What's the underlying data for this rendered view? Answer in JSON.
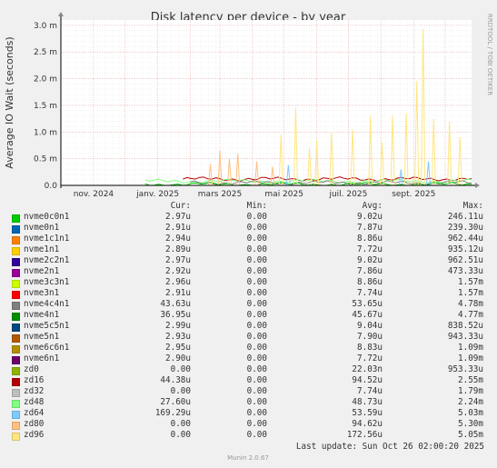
{
  "chart_data": {
    "type": "line",
    "title": "Disk latency per device - by year",
    "ylabel": "Average IO Wait (seconds)",
    "ylim": [
      0,
      3.1
    ],
    "yticks": [
      {
        "value": 0,
        "label": "0.0"
      },
      {
        "value": 0.5,
        "label": "0.5 m"
      },
      {
        "value": 1.0,
        "label": "1.0 m"
      },
      {
        "value": 1.5,
        "label": "1.5 m"
      },
      {
        "value": 2.0,
        "label": "2.0 m"
      },
      {
        "value": 2.5,
        "label": "2.5 m"
      },
      {
        "value": 3.0,
        "label": "3.0 m"
      }
    ],
    "xticks": [
      {
        "date": "2024-11-01",
        "label": "nov. 2024"
      },
      {
        "date": "2025-01-01",
        "label": "janv. 2025"
      },
      {
        "date": "2025-03-01",
        "label": "mars 2025"
      },
      {
        "date": "2025-05-01",
        "label": "mai 2025"
      },
      {
        "date": "2025-07-01",
        "label": "juil. 2025"
      },
      {
        "date": "2025-09-01",
        "label": "sept. 2025"
      }
    ],
    "xrange": [
      "2024-10-01",
      "2025-10-26"
    ],
    "grid": true,
    "legend_placement": "bottom",
    "legend_headers": [
      "Cur:",
      "Min:",
      "Avg:",
      "Max:"
    ],
    "series": [
      {
        "name": "nvme0c0n1",
        "color": "#00cc00",
        "cur": "2.97u",
        "min": "0.00",
        "avg": "9.02u",
        "max": "246.11u"
      },
      {
        "name": "nvme0n1",
        "color": "#0066b3",
        "cur": "2.91u",
        "min": "0.00",
        "avg": "7.87u",
        "max": "239.30u"
      },
      {
        "name": "nvme1c1n1",
        "color": "#ff8000",
        "cur": "2.94u",
        "min": "0.00",
        "avg": "8.86u",
        "max": "962.44u"
      },
      {
        "name": "nvme1n1",
        "color": "#ffcc00",
        "cur": "2.89u",
        "min": "0.00",
        "avg": "7.72u",
        "max": "935.12u"
      },
      {
        "name": "nvme2c2n1",
        "color": "#330099",
        "cur": "2.97u",
        "min": "0.00",
        "avg": "9.02u",
        "max": "962.51u"
      },
      {
        "name": "nvme2n1",
        "color": "#990099",
        "cur": "2.92u",
        "min": "0.00",
        "avg": "7.86u",
        "max": "473.33u"
      },
      {
        "name": "nvme3c3n1",
        "color": "#ccff00",
        "cur": "2.96u",
        "min": "0.00",
        "avg": "8.86u",
        "max": "1.57m"
      },
      {
        "name": "nvme3n1",
        "color": "#ff0000",
        "cur": "2.91u",
        "min": "0.00",
        "avg": "7.74u",
        "max": "1.57m"
      },
      {
        "name": "nvme4c4n1",
        "color": "#808080",
        "cur": "43.63u",
        "min": "0.00",
        "avg": "53.65u",
        "max": "4.78m"
      },
      {
        "name": "nvme4n1",
        "color": "#008f00",
        "cur": "36.95u",
        "min": "0.00",
        "avg": "45.67u",
        "max": "4.77m"
      },
      {
        "name": "nvme5c5n1",
        "color": "#00487d",
        "cur": "2.99u",
        "min": "0.00",
        "avg": "9.04u",
        "max": "838.52u"
      },
      {
        "name": "nvme5n1",
        "color": "#b35a00",
        "cur": "2.93u",
        "min": "0.00",
        "avg": "7.90u",
        "max": "943.33u"
      },
      {
        "name": "nvme6c6n1",
        "color": "#b38f00",
        "cur": "2.95u",
        "min": "0.00",
        "avg": "8.83u",
        "max": "1.09m"
      },
      {
        "name": "nvme6n1",
        "color": "#6b006b",
        "cur": "2.90u",
        "min": "0.00",
        "avg": "7.72u",
        "max": "1.09m"
      },
      {
        "name": "zd0",
        "color": "#8fb300",
        "cur": "0.00",
        "min": "0.00",
        "avg": "22.03n",
        "max": "953.33u"
      },
      {
        "name": "zd16",
        "color": "#b30000",
        "cur": "44.38u",
        "min": "0.00",
        "avg": "94.52u",
        "max": "2.55m"
      },
      {
        "name": "zd32",
        "color": "#bebebe",
        "cur": "0.00",
        "min": "0.00",
        "avg": "7.74u",
        "max": "1.79m"
      },
      {
        "name": "zd48",
        "color": "#80ff80",
        "cur": "27.60u",
        "min": "0.00",
        "avg": "48.73u",
        "max": "2.24m"
      },
      {
        "name": "zd64",
        "color": "#80c9ff",
        "cur": "169.29u",
        "min": "0.00",
        "avg": "53.59u",
        "max": "5.03m"
      },
      {
        "name": "zd80",
        "color": "#ffc080",
        "cur": "0.00",
        "min": "0.00",
        "avg": "94.62u",
        "max": "5.30m"
      },
      {
        "name": "zd96",
        "color": "#ffe680",
        "cur": "0.00",
        "min": "0.00",
        "avg": "172.56u",
        "max": "5.05m"
      }
    ],
    "spikes": [
      {
        "date": "2025-09-10",
        "series": "zd96",
        "value": 2.93
      },
      {
        "date": "2025-09-04",
        "series": "zd96",
        "value": 1.95
      },
      {
        "date": "2025-08-25",
        "series": "zd96",
        "value": 1.35
      },
      {
        "date": "2025-08-12",
        "series": "zd96",
        "value": 1.3
      },
      {
        "date": "2025-07-22",
        "series": "zd96",
        "value": 1.3
      },
      {
        "date": "2025-09-20",
        "series": "zd96",
        "value": 1.25
      },
      {
        "date": "2025-10-05",
        "series": "zd96",
        "value": 1.2
      },
      {
        "date": "2025-07-05",
        "series": "zd96",
        "value": 1.05
      },
      {
        "date": "2025-06-15",
        "series": "zd96",
        "value": 1.0
      },
      {
        "date": "2025-05-12",
        "series": "zd96",
        "value": 1.45
      },
      {
        "date": "2025-04-28",
        "series": "zd96",
        "value": 0.95
      },
      {
        "date": "2025-06-01",
        "series": "zd96",
        "value": 0.85
      },
      {
        "date": "2025-05-25",
        "series": "zd96",
        "value": 0.7
      },
      {
        "date": "2025-10-15",
        "series": "zd96",
        "value": 0.9
      },
      {
        "date": "2025-08-02",
        "series": "zd96",
        "value": 0.8
      },
      {
        "date": "2025-03-01",
        "series": "zd80",
        "value": 0.65
      },
      {
        "date": "2025-03-18",
        "series": "zd80",
        "value": 0.6
      },
      {
        "date": "2025-04-05",
        "series": "zd80",
        "value": 0.45
      },
      {
        "date": "2025-02-20",
        "series": "zd80",
        "value": 0.4
      },
      {
        "date": "2025-03-10",
        "series": "zd80",
        "value": 0.5
      },
      {
        "date": "2025-04-20",
        "series": "zd80",
        "value": 0.35
      },
      {
        "date": "2025-05-05",
        "series": "zd64",
        "value": 0.38
      },
      {
        "date": "2025-09-15",
        "series": "zd64",
        "value": 0.45
      },
      {
        "date": "2025-08-20",
        "series": "zd64",
        "value": 0.3
      }
    ],
    "baselines": [
      {
        "series": "zd16",
        "start": "2025-01-25",
        "end": "2025-10-26",
        "level": 0.12
      },
      {
        "series": "zd48",
        "start": "2024-12-20",
        "end": "2025-10-26",
        "level": 0.08
      },
      {
        "series": "nvme4c4n1",
        "start": "2025-02-01",
        "end": "2025-10-26",
        "level": 0.05
      },
      {
        "series": "nvme0c0n1",
        "start": "2024-12-20",
        "end": "2025-10-26",
        "level": 0.02
      }
    ]
  },
  "vertical_credit": "RRDTOOL / TOBI OETIKER",
  "last_update": "Last update: Sun Oct 26 02:00:20 2025",
  "munin_version": "Munin 2.0.67"
}
